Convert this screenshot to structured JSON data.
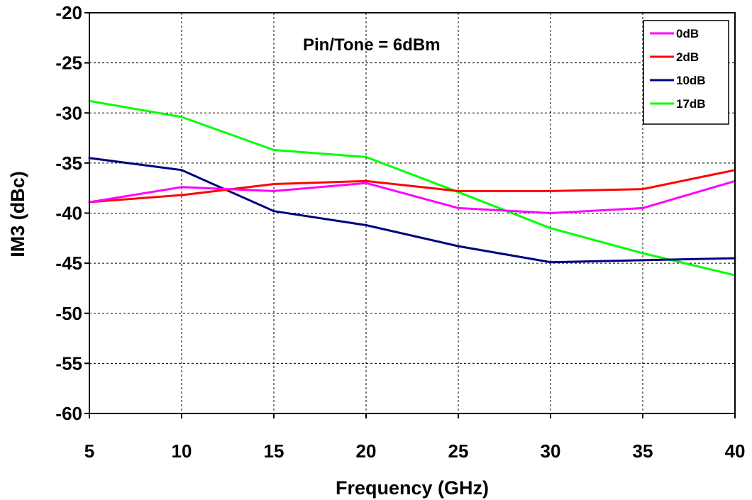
{
  "chart_data": {
    "type": "line",
    "title": "",
    "annotation": "Pin/Tone = 6dBm",
    "xlabel": "Frequency (GHz)",
    "ylabel": "IM3 (dBc)",
    "xlim": [
      5,
      40
    ],
    "ylim": [
      -60,
      -20
    ],
    "xticks": [
      5,
      10,
      15,
      20,
      25,
      30,
      35,
      40
    ],
    "yticks": [
      -20,
      -25,
      -30,
      -35,
      -40,
      -45,
      -50,
      -55,
      -60
    ],
    "grid": true,
    "legend_position": "top-right",
    "x": [
      5,
      10,
      15,
      20,
      25,
      30,
      35,
      40
    ],
    "series": [
      {
        "name": "0dB",
        "color": "#ff00ff",
        "values": [
          -38.9,
          -37.4,
          -37.8,
          -37.0,
          -39.5,
          -40.0,
          -39.5,
          -36.8
        ]
      },
      {
        "name": "2dB",
        "color": "#ff0000",
        "values": [
          -38.9,
          -38.2,
          -37.1,
          -36.8,
          -37.8,
          -37.8,
          -37.6,
          -35.7
        ]
      },
      {
        "name": "10dB",
        "color": "#000080",
        "values": [
          -34.5,
          -35.7,
          -39.8,
          -41.2,
          -43.3,
          -44.9,
          -44.7,
          -44.5
        ]
      },
      {
        "name": "17dB",
        "color": "#00ff00",
        "values": [
          -28.8,
          -30.4,
          -33.7,
          -34.4,
          -37.9,
          -41.5,
          -44.0,
          -46.2
        ]
      }
    ]
  }
}
